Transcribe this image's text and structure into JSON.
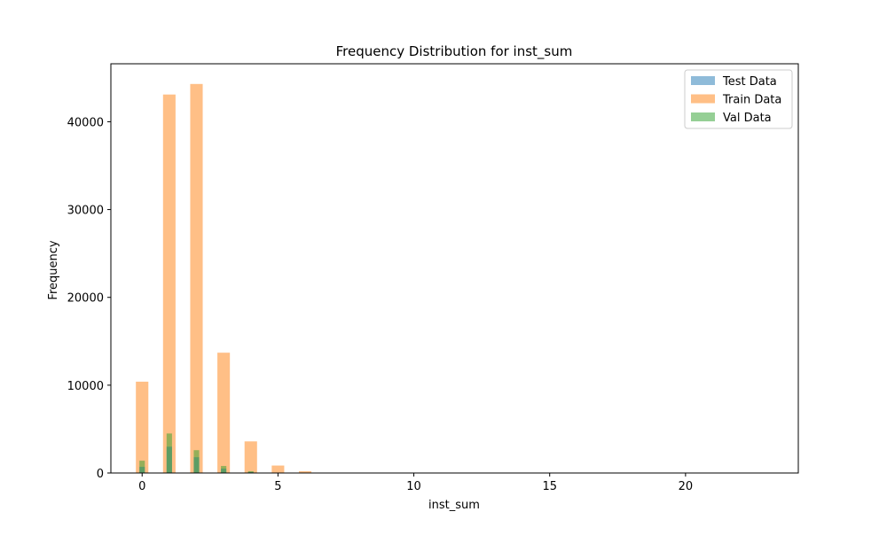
{
  "chart_data": {
    "type": "bar",
    "title": "Frequency Distribution for inst_sum",
    "xlabel": "inst_sum",
    "ylabel": "Frequency",
    "xlim": [
      -1.15,
      24.15
    ],
    "ylim": [
      0,
      46600
    ],
    "x_ticks": [
      0,
      5,
      10,
      15,
      20
    ],
    "x_tick_labels": [
      "0",
      "5",
      "10",
      "15",
      "20"
    ],
    "y_ticks": [
      0,
      10000,
      20000,
      30000,
      40000
    ],
    "y_tick_labels": [
      "0",
      "10000",
      "20000",
      "30000",
      "40000"
    ],
    "grid": false,
    "legend_position": "upper right",
    "legend_entries": [
      "Test Data",
      "Train Data",
      "Val Data"
    ],
    "series": [
      {
        "name": "Test Data",
        "color": "#1f77b4",
        "opacity": 0.5,
        "bar_width": 0.2,
        "x": [
          0,
          1,
          2,
          3,
          4,
          5,
          6
        ],
        "values": [
          700,
          3000,
          1800,
          500,
          120,
          30,
          5
        ]
      },
      {
        "name": "Train Data",
        "color": "#ff7f0e",
        "opacity": 0.5,
        "bar_width": 0.46,
        "x": [
          0,
          1,
          2,
          3,
          4,
          5,
          6
        ],
        "values": [
          10400,
          43100,
          44300,
          13700,
          3600,
          850,
          200
        ]
      },
      {
        "name": "Val Data",
        "color": "#2ca02c",
        "opacity": 0.5,
        "bar_width": 0.2,
        "x": [
          0,
          1,
          2,
          3,
          4,
          5,
          6
        ],
        "values": [
          1400,
          4500,
          2600,
          800,
          200,
          40,
          8
        ]
      }
    ]
  }
}
